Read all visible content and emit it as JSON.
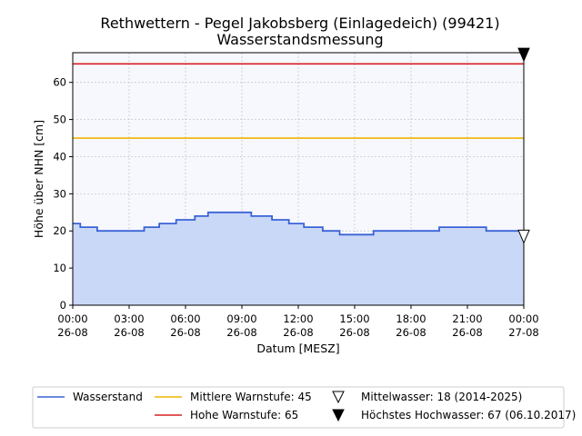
{
  "chart_data": {
    "type": "area",
    "title": "Rethwettern - Pegel Jakobsberg (Einlagedeich) (99421)",
    "subtitle": "Wasserstandsmessung",
    "xlabel": "Datum [MESZ]",
    "ylabel": "Höhe über NHN [cm]",
    "x_unit": "hours after 26-08 00:00",
    "xlim": [
      0,
      24
    ],
    "ylim": [
      0,
      68
    ],
    "grid": true,
    "x_ticks": [
      {
        "value": 0,
        "time": "00:00",
        "date": "26-08"
      },
      {
        "value": 3,
        "time": "03:00",
        "date": "26-08"
      },
      {
        "value": 6,
        "time": "06:00",
        "date": "26-08"
      },
      {
        "value": 9,
        "time": "09:00",
        "date": "26-08"
      },
      {
        "value": 12,
        "time": "12:00",
        "date": "26-08"
      },
      {
        "value": 15,
        "time": "15:00",
        "date": "26-08"
      },
      {
        "value": 18,
        "time": "18:00",
        "date": "26-08"
      },
      {
        "value": 21,
        "time": "21:00",
        "date": "26-08"
      },
      {
        "value": 24,
        "time": "00:00",
        "date": "27-08"
      }
    ],
    "y_ticks": [
      0,
      10,
      20,
      30,
      40,
      50,
      60
    ],
    "series": [
      {
        "name": "Wasserstand",
        "color": "#3a63d6",
        "fill": "#cad8f7",
        "step": true,
        "x": [
          0,
          0.4,
          1.3,
          3.8,
          4.6,
          5.5,
          6.5,
          7.2,
          9.5,
          10.6,
          11.5,
          12.3,
          13.3,
          14.2,
          15.5,
          16.0,
          16.5,
          17.5,
          18.5,
          19.5,
          20.5,
          22.0,
          22.5,
          24.0
        ],
        "y": [
          22,
          21,
          20,
          21,
          22,
          23,
          24,
          25,
          24,
          23,
          22,
          21,
          20,
          19,
          19,
          20,
          20,
          20,
          20,
          21,
          21,
          20,
          20,
          20
        ]
      }
    ],
    "reference_lines": [
      {
        "name": "Mittlere Warnstufe",
        "value": 45,
        "color": "#f0b400"
      },
      {
        "name": "Hohe Warnstufe",
        "value": 65,
        "color": "#d62020"
      }
    ],
    "markers": [
      {
        "name": "Mittelwasser",
        "value": 18,
        "period": "2014-2025",
        "x": 24,
        "shape": "triangle-down-open"
      },
      {
        "name": "Höchstes Hochwasser",
        "value": 67,
        "date": "06.10.2017",
        "x": 24,
        "shape": "triangle-down-filled"
      }
    ],
    "legend": {
      "placement": "bottom",
      "entries": [
        "Wasserstand",
        "Mittlere Warnstufe: 45",
        "Mittelwasser: 18 (2014-2025)",
        "Hohe Warnstufe: 65",
        "Höchstes Hochwasser: 67 (06.10.2017)"
      ]
    }
  }
}
